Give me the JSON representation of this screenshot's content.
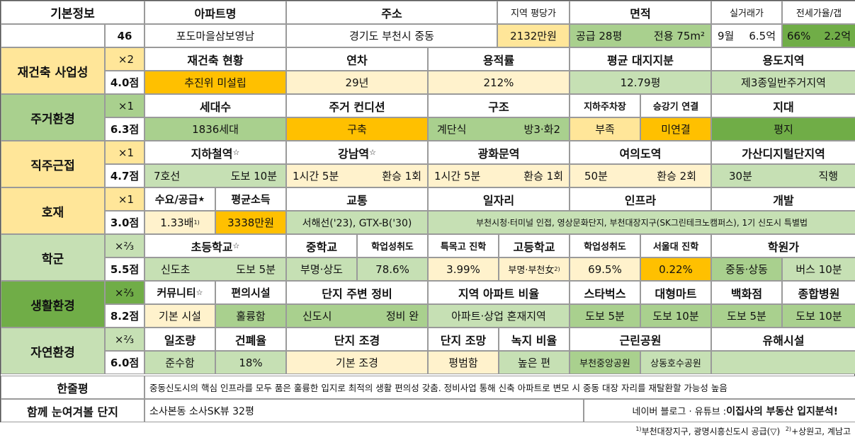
{
  "basic": {
    "label": "기본정보",
    "id": "46",
    "headers": {
      "name": "아파트명",
      "address": "주소",
      "price_per_pyeong": "지역 평당가",
      "area": "면적",
      "actual_price": "실거래가",
      "jeonse": "전세가율/갭"
    },
    "name": "포도마을삼보영남",
    "address": "경기도 부천시 중동",
    "price_per_pyeong": "2132만원",
    "supply_area": "공급 28평",
    "exclusive_area": "전용 75m²",
    "actual_month": "9월",
    "actual_price": "6.5억",
    "jeonse_rate": "66%",
    "gap": "2.2억"
  },
  "rebuild": {
    "label": "재건축 사업성",
    "mult": "×2",
    "score": "4.0점",
    "headers": {
      "status": "재건축 현황",
      "age": "연차",
      "far": "용적률",
      "land": "평균 대지지분",
      "zone": "용도지역"
    },
    "status": "추진위 미설립",
    "age": "29년",
    "far": "212%",
    "land": "12.79평",
    "zone": "제3종일반주거지역"
  },
  "living": {
    "label": "주거환경",
    "mult": "×1",
    "score": "6.3점",
    "headers": {
      "households": "세대수",
      "condition": "주거 컨디션",
      "structure": "구조",
      "parking": "지하주차장",
      "elevator": "승강기 연결",
      "terrain": "지대"
    },
    "households": "1836세대",
    "condition": "구축",
    "structure_type": "계단식",
    "rooms": "방3·화2",
    "parking": "부족",
    "elevator": "미연결",
    "terrain": "평지"
  },
  "commute": {
    "label": "직주근접",
    "mult": "×1",
    "score": "4.7점",
    "headers": {
      "subway": "지하철역",
      "gangnam": "강남역",
      "gwanghwamun": "광화문역",
      "yeouido": "여의도역",
      "gasan": "가산디지털단지역"
    },
    "subway_line": "7호선",
    "subway_walk": "도보 10분",
    "gangnam_time": "1시간 5분",
    "gangnam_transfer": "환승 1회",
    "gwanghwamun_time": "1시간 5분",
    "gwanghwamun_transfer": "환승 1회",
    "yeouido_time": "50분",
    "yeouido_transfer": "환승 2회",
    "gasan_time": "30분",
    "gasan_transfer": "직행"
  },
  "development": {
    "label": "호재",
    "mult": "×1",
    "score": "3.0점",
    "headers": {
      "supply": "수요/공급",
      "income": "평균소득",
      "transport": "교통",
      "jobs": "일자리",
      "infra": "인프라",
      "dev": "개발"
    },
    "supply": "1.33배",
    "supply_note": "1)",
    "income": "3338만원",
    "transport": "서해선('23), GTX-B('30)",
    "jobs_infra": "부천시청·터미널 인접, 영상문화단지, 부천대장지구(SK그린테크노캠퍼스), 1기 신도시 특별법"
  },
  "school": {
    "label": "학군",
    "mult": "×⅔",
    "score": "5.5점",
    "headers": {
      "elementary": "초등학교",
      "middle": "중학교",
      "mid_achieve": "학업성취도",
      "special": "특목고 진학",
      "high": "고등학교",
      "high_achieve": "학업성취도",
      "snu": "서울대 진학",
      "academy": "학원가"
    },
    "elementary": "신도초",
    "elementary_walk": "도보 5분",
    "middle": "부명·상도",
    "mid_achieve": "78.6%",
    "special": "3.99%",
    "high": "부명·부천女",
    "high_note": "2)",
    "high_achieve": "69.5%",
    "snu": "0.22%",
    "academy": "중동·상동",
    "academy_bus": "버스 10분"
  },
  "life": {
    "label": "생활환경",
    "mult": "×⅔",
    "score": "8.2점",
    "headers": {
      "community": "커뮤니티",
      "convenience": "편의시설",
      "surround": "단지 주변 정비",
      "ratio": "지역 아파트 비율",
      "starbucks": "스타벅스",
      "mart": "대형마트",
      "dept": "백화점",
      "hospital": "종합병원"
    },
    "community": "기본 시설",
    "convenience": "훌륭함",
    "surround_area": "신도시",
    "surround_status": "정비 완",
    "ratio": "아파트·상업 혼재지역",
    "starbucks": "도보 5분",
    "mart": "도보 10분",
    "dept": "도보 5분",
    "hospital": "도보 10분"
  },
  "nature": {
    "label": "자연환경",
    "mult": "×⅔",
    "score": "6.0점",
    "headers": {
      "sunlight": "일조량",
      "coverage": "건폐율",
      "landscape": "단지 조경",
      "view": "단지 조망",
      "green": "녹지 비율",
      "park": "근린공원",
      "hazard": "유해시설"
    },
    "sunlight": "준수함",
    "coverage": "18%",
    "landscape": "기본 조경",
    "view": "평범함",
    "green": "높은 편",
    "park1": "부천중앙공원",
    "park2": "상동호수공원",
    "hazard": ""
  },
  "summary": {
    "label": "한줄평",
    "text": "중동신도시의 핵심 인프라를 모두 품은 훌륭한 입지로 최적의 생활 편의성 갖춤. 정비사업 통해 신축 아파트로 변모 시 중동 대장 자리를 재탈환할 가능성 높음"
  },
  "together": {
    "label": "함께 눈여겨볼 단지",
    "text": "소사본동 소사SK뷰 32평",
    "credit_prefix": "네이버 블로그 · 유튜브 : ",
    "credit_name": "이집사의 부동산 입지분석!"
  },
  "footnote": {
    "n1": "1)",
    "t1": "부천대장지구, 광명시흥신도시 공급(▽)",
    "n2": "2)",
    "t2": "+상원고, 계남고"
  },
  "colors": {
    "yellow": "#ffe699",
    "orange": "#ffc000",
    "green": "#a9d08e",
    "light_green": "#c6e0b4",
    "pale_yellow": "#fff2cc",
    "dark_green": "#70ad47"
  }
}
